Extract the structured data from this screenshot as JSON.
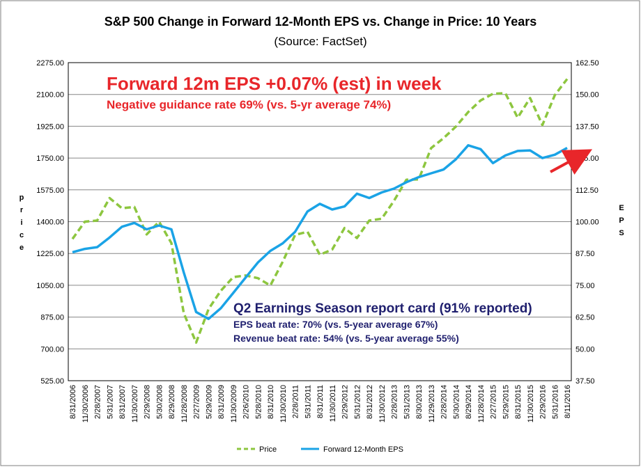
{
  "chart_data": {
    "type": "line",
    "title": "S&P 500 Change in Forward 12-Month EPS vs. Change in Price: 10 Years",
    "subtitle": "(Source: FactSet)",
    "ylabel_left": "Price",
    "ylabel_right": "EPS",
    "ylim_left": [
      525,
      2275
    ],
    "ylim_right": [
      37.5,
      162.5
    ],
    "yticks_left": [
      "525.00",
      "700.00",
      "875.00",
      "1050.00",
      "1225.00",
      "1400.00",
      "1575.00",
      "1750.00",
      "1925.00",
      "2100.00",
      "2275.00"
    ],
    "yticks_right": [
      "37.50",
      "50.00",
      "62.50",
      "75.00",
      "87.50",
      "100.00",
      "112.50",
      "125.00",
      "137.50",
      "150.00",
      "162.50"
    ],
    "grid": true,
    "legend": "bottom",
    "x": [
      "8/31/2006",
      "11/30/2006",
      "2/28/2007",
      "5/31/2007",
      "8/31/2007",
      "11/30/2007",
      "2/29/2008",
      "5/30/2008",
      "8/29/2008",
      "11/28/2008",
      "2/27/2009",
      "5/29/2009",
      "8/31/2009",
      "11/30/2009",
      "2/26/2010",
      "5/28/2010",
      "8/31/2010",
      "11/30/2010",
      "2/28/2011",
      "5/31/2011",
      "8/31/2011",
      "11/30/2011",
      "2/29/2012",
      "5/31/2012",
      "8/31/2012",
      "11/30/2012",
      "2/28/2013",
      "5/31/2013",
      "8/30/2013",
      "11/29/2013",
      "2/28/2014",
      "5/30/2014",
      "8/29/2014",
      "11/28/2014",
      "2/27/2015",
      "5/29/2015",
      "8/31/2015",
      "11/30/2015",
      "2/29/2016",
      "5/31/2016",
      "8/11/2016"
    ],
    "series": [
      {
        "name": "Price",
        "axis": "left",
        "color": "#8dc63f",
        "style": "dashed",
        "values": [
          1305,
          1400,
          1406,
          1530,
          1474,
          1481,
          1330,
          1400,
          1282,
          896,
          735,
          919,
          1020,
          1095,
          1104,
          1089,
          1049,
          1180,
          1327,
          1345,
          1218,
          1247,
          1365,
          1310,
          1406,
          1416,
          1515,
          1631,
          1633,
          1805,
          1859,
          1923,
          2003,
          2067,
          2104,
          2107,
          1972,
          2080,
          1932,
          2096,
          2185
        ]
      },
      {
        "name": "Forward 12-Month EPS",
        "axis": "right",
        "color": "#1aa3e6",
        "style": "solid",
        "values": [
          88.0,
          89.3,
          90.0,
          93.8,
          98.0,
          99.5,
          97.0,
          98.5,
          97.0,
          80.0,
          64.5,
          61.8,
          66.0,
          72.0,
          78.0,
          84.0,
          88.5,
          91.5,
          96.0,
          104.0,
          107.0,
          104.8,
          106.0,
          111.0,
          109.3,
          111.5,
          113.0,
          115.5,
          117.5,
          119.0,
          120.5,
          124.5,
          130.0,
          128.5,
          123.0,
          126.0,
          127.8,
          128.0,
          125.0,
          126.3,
          129.0
        ]
      }
    ],
    "annotations": {
      "eps_week": "Forward 12m EPS +0.07% (est) in week",
      "guidance": "Negative guidance rate 69% (vs. 5-yr average 74%)",
      "report_card": "Q2 Earnings Season report card (91% reported)",
      "eps_beat": "EPS beat rate: 70% (vs. 5-year average 67%)",
      "revenue_beat": "Revenue beat rate: 54% (vs. 5-year average 55%)"
    },
    "arrow_color": "#e8262a"
  }
}
